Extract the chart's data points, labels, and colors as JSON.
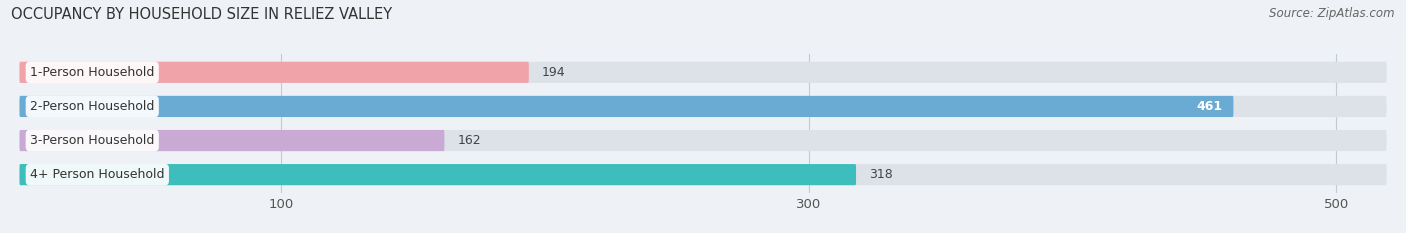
{
  "title": "OCCUPANCY BY HOUSEHOLD SIZE IN RELIEZ VALLEY",
  "source": "Source: ZipAtlas.com",
  "categories": [
    "1-Person Household",
    "2-Person Household",
    "3-Person Household",
    "4+ Person Household"
  ],
  "values": [
    194,
    461,
    162,
    318
  ],
  "bar_colors": [
    "#f0a4aa",
    "#6aabd4",
    "#c9aad4",
    "#3dbdbc"
  ],
  "label_colors": [
    "#444444",
    "#ffffff",
    "#444444",
    "#444444"
  ],
  "xlim": [
    0,
    520
  ],
  "xticks": [
    100,
    300,
    500
  ],
  "background_color": "#eef1f5",
  "bar_bg_color": "#dde1e8",
  "title_fontsize": 10.5,
  "source_fontsize": 8.5,
  "tick_fontsize": 9.5,
  "cat_fontsize": 9,
  "value_fontsize": 9
}
